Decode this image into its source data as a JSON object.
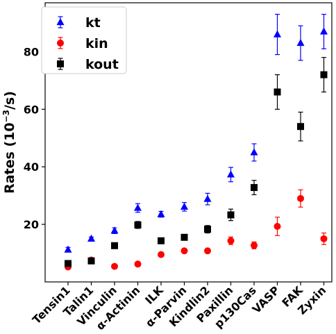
{
  "chart_data": {
    "type": "scatter",
    "categories": [
      "Tensin1",
      "Talin1",
      "Vinculin",
      "α-Actinin",
      "ILK",
      "α-Parvin",
      "Kindlin2",
      "Paxillin",
      "p130Cas",
      "VASP",
      "FAK",
      "Zyxin"
    ],
    "ylabel": "Rates (10",
    "ylabel_sup": "−3",
    "ylabel_unit": "/s)",
    "xlabel": "",
    "ylim": [
      0,
      97
    ],
    "yticks": [
      20,
      40,
      60,
      80
    ],
    "legend_position": "upper-left",
    "grid": false,
    "series": [
      {
        "name": "kt",
        "color": "#0000ff",
        "marker": "triangle",
        "values": [
          11.2,
          15.0,
          17.8,
          25.7,
          23.5,
          26.1,
          28.8,
          37.3,
          45.0,
          86.0,
          83.0,
          87.0
        ],
        "errors": [
          0.8,
          0.6,
          1.0,
          1.5,
          1.0,
          1.5,
          2.0,
          2.5,
          3.0,
          7.0,
          6.0,
          6.0
        ]
      },
      {
        "name": "kin",
        "color": "#ff0000",
        "marker": "circle",
        "values": [
          5.2,
          7.6,
          5.4,
          6.2,
          9.5,
          10.8,
          10.8,
          14.3,
          12.7,
          19.3,
          29.0,
          15.0
        ],
        "errors": [
          0.5,
          0.5,
          0.3,
          0.3,
          0.5,
          0.6,
          0.6,
          1.3,
          1.2,
          3.2,
          3.0,
          2.0
        ]
      },
      {
        "name": "kout",
        "color": "#000000",
        "marker": "square",
        "values": [
          6.4,
          7.3,
          12.6,
          19.8,
          14.3,
          15.5,
          18.3,
          23.3,
          32.8,
          66.0,
          54.0,
          72.0
        ],
        "errors": [
          0.6,
          0.8,
          0.6,
          1.2,
          0.6,
          0.5,
          1.3,
          2.0,
          2.5,
          6.0,
          5.0,
          6.0
        ]
      }
    ]
  }
}
